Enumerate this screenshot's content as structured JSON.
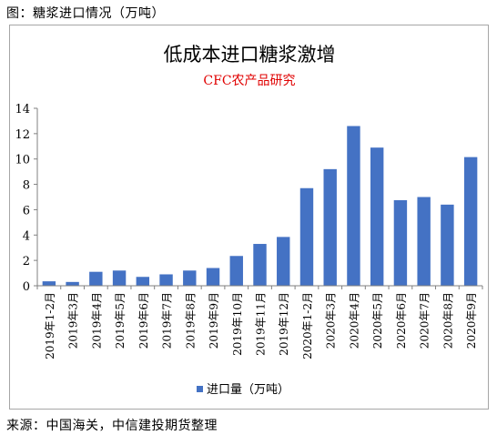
{
  "figure": {
    "caption": "图：糖浆进口情况（万吨）",
    "source": "来源：中国海关，中信建投期货整理"
  },
  "colors": {
    "bar": "#4472c4",
    "subtitle": "#e00000",
    "axis": "#808080",
    "frame": "#a6a6a6"
  },
  "chart_data": {
    "type": "bar",
    "title": "低成本进口糖浆激增",
    "subtitle": "CFC农产品研究",
    "categories": [
      "2019年1-2月",
      "2019年3月",
      "2019年4月",
      "2019年5月",
      "2019年6月",
      "2019年7月",
      "2019年8月",
      "2019年9月",
      "2019年10月",
      "2019年11月",
      "2019年12月",
      "2020年1-2月",
      "2020年3月",
      "2020年4月",
      "2020年5月",
      "2020年6月",
      "2020年7月",
      "2020年8月",
      "2020年9月"
    ],
    "series": [
      {
        "name": "进口量（万吨）",
        "values": [
          0.35,
          0.3,
          1.1,
          1.2,
          0.7,
          0.9,
          1.2,
          1.4,
          2.35,
          3.3,
          3.85,
          7.7,
          9.2,
          12.6,
          10.9,
          6.75,
          7.0,
          6.4,
          10.15
        ]
      }
    ],
    "ylim": [
      0,
      14
    ],
    "yticks": [
      0,
      2,
      4,
      6,
      8,
      10,
      12,
      14
    ],
    "grid": false,
    "legend": "bottom"
  }
}
